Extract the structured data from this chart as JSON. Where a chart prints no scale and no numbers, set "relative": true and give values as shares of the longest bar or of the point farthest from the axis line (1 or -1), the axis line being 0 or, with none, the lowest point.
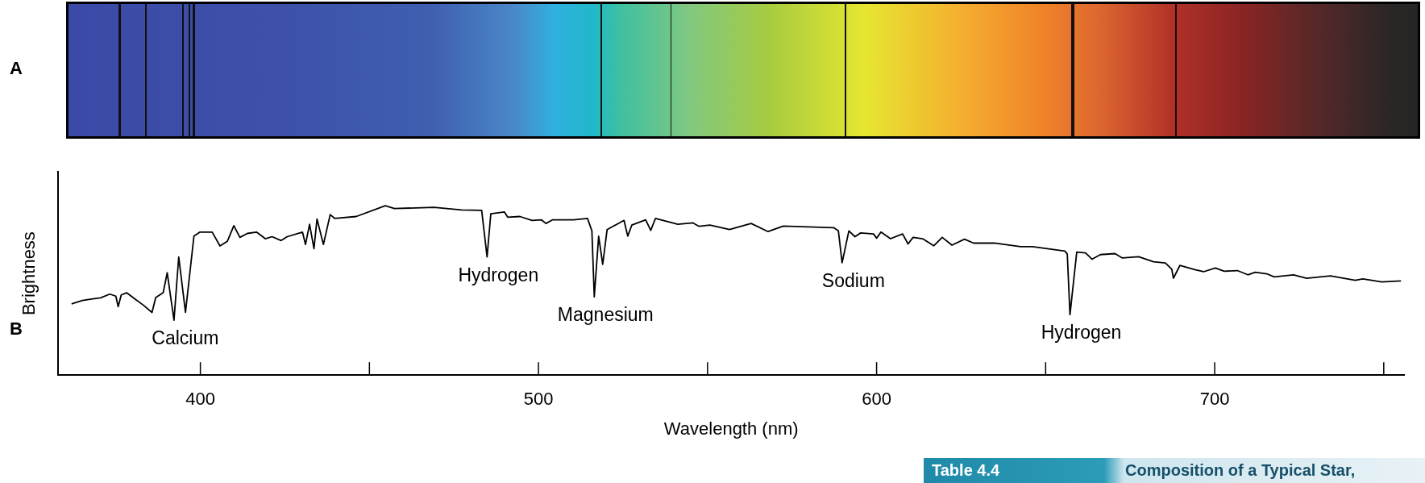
{
  "chart_data": {
    "type": "line",
    "relative": true,
    "xlabel": "Wavelength (nm)",
    "ylabel": "Brightness",
    "xlim": [
      358,
      756
    ],
    "xticks": [
      400,
      {
        "value": 450,
        "label": null
      },
      500,
      {
        "value": 550,
        "label": null
      },
      600,
      {
        "value": 650,
        "label": null
      },
      700,
      {
        "value": 750,
        "label": null
      }
    ],
    "x": [
      361.9,
      365.1,
      368.2,
      370.5,
      373.2,
      375.0,
      375.7,
      376.6,
      378.2,
      380.4,
      383.2,
      385.7,
      386.8,
      389.0,
      390.2,
      392.2,
      393.6,
      395.6,
      398.1,
      399.9,
      403.5,
      405.8,
      408.0,
      409.9,
      411.7,
      413.9,
      416.6,
      419.2,
      421.2,
      423.9,
      425.7,
      430.2,
      431.1,
      432.3,
      433.6,
      434.5,
      436.4,
      438.4,
      439.7,
      446.1,
      454.7,
      457.4,
      469.1,
      477.3,
      483.2,
      484.8,
      485.9,
      489.9,
      490.9,
      494.5,
      498.1,
      500.9,
      502.2,
      504.1,
      510.4,
      514.5,
      515.8,
      516.5,
      517.8,
      519.0,
      520.3,
      525.3,
      526.4,
      527.6,
      531.7,
      533.2,
      534.6,
      541.2,
      545.7,
      547.5,
      550.7,
      556.5,
      562.9,
      567.9,
      572.4,
      587.3,
      588.7,
      589.8,
      591.8,
      593.6,
      595.3,
      599.1,
      600.0,
      601.3,
      604.1,
      607.7,
      609.3,
      610.8,
      613.6,
      616.9,
      619.4,
      622.3,
      626.0,
      628.7,
      634.8,
      642.6,
      646.1,
      655.7,
      656.4,
      657.2,
      659.2,
      661.8,
      663.7,
      666.2,
      670.5,
      672.7,
      677.5,
      681.9,
      685.4,
      687.3,
      687.8,
      689.7,
      694.1,
      696.7,
      700.2,
      702.8,
      706.7,
      709.8,
      712.0,
      715.4,
      717.6,
      723.3,
      727.2,
      734.2,
      741.6,
      743.8,
      749.4,
      755.1
    ],
    "series": [
      {
        "color": "#000000",
        "values": [
          0.42,
          0.44,
          0.45,
          0.456,
          0.478,
          0.466,
          0.404,
          0.473,
          0.486,
          0.453,
          0.412,
          0.37,
          0.458,
          0.486,
          0.604,
          0.324,
          0.697,
          0.37,
          0.82,
          0.844,
          0.844,
          0.762,
          0.79,
          0.882,
          0.813,
          0.836,
          0.844,
          0.805,
          0.817,
          0.794,
          0.817,
          0.844,
          0.771,
          0.89,
          0.746,
          0.921,
          0.771,
          0.947,
          0.925,
          0.936,
          1.0,
          0.983,
          0.99,
          0.975,
          0.972,
          0.697,
          0.952,
          0.963,
          0.932,
          0.936,
          0.913,
          0.916,
          0.895,
          0.916,
          0.916,
          0.925,
          0.851,
          0.462,
          0.82,
          0.654,
          0.859,
          0.913,
          0.82,
          0.885,
          0.916,
          0.854,
          0.925,
          0.89,
          0.898,
          0.878,
          0.885,
          0.859,
          0.895,
          0.847,
          0.879,
          0.87,
          0.851,
          0.663,
          0.851,
          0.817,
          0.839,
          0.833,
          0.808,
          0.844,
          0.805,
          0.833,
          0.774,
          0.813,
          0.805,
          0.763,
          0.813,
          0.767,
          0.802,
          0.779,
          0.779,
          0.758,
          0.758,
          0.732,
          0.714,
          0.357,
          0.726,
          0.721,
          0.684,
          0.711,
          0.717,
          0.691,
          0.699,
          0.669,
          0.662,
          0.625,
          0.572,
          0.647,
          0.622,
          0.61,
          0.632,
          0.613,
          0.617,
          0.592,
          0.607,
          0.598,
          0.58,
          0.592,
          0.571,
          0.586,
          0.559,
          0.568,
          0.55,
          0.556
        ]
      }
    ],
    "annotations": [
      "A",
      "B",
      "Table 4.4",
      "Composition of a Typical Star,",
      {
        "text": "Calcium",
        "x": 392.2,
        "y": 0.324
      },
      {
        "text": "Hydrogen",
        "x": 484.8,
        "y": 0.697
      },
      {
        "text": "Magnesium",
        "x": 516.5,
        "y": 0.462
      },
      {
        "text": "Sodium",
        "x": 589.8,
        "y": 0.663
      },
      {
        "text": "Hydrogen",
        "x": 657.2,
        "y": 0.357
      }
    ]
  }
}
